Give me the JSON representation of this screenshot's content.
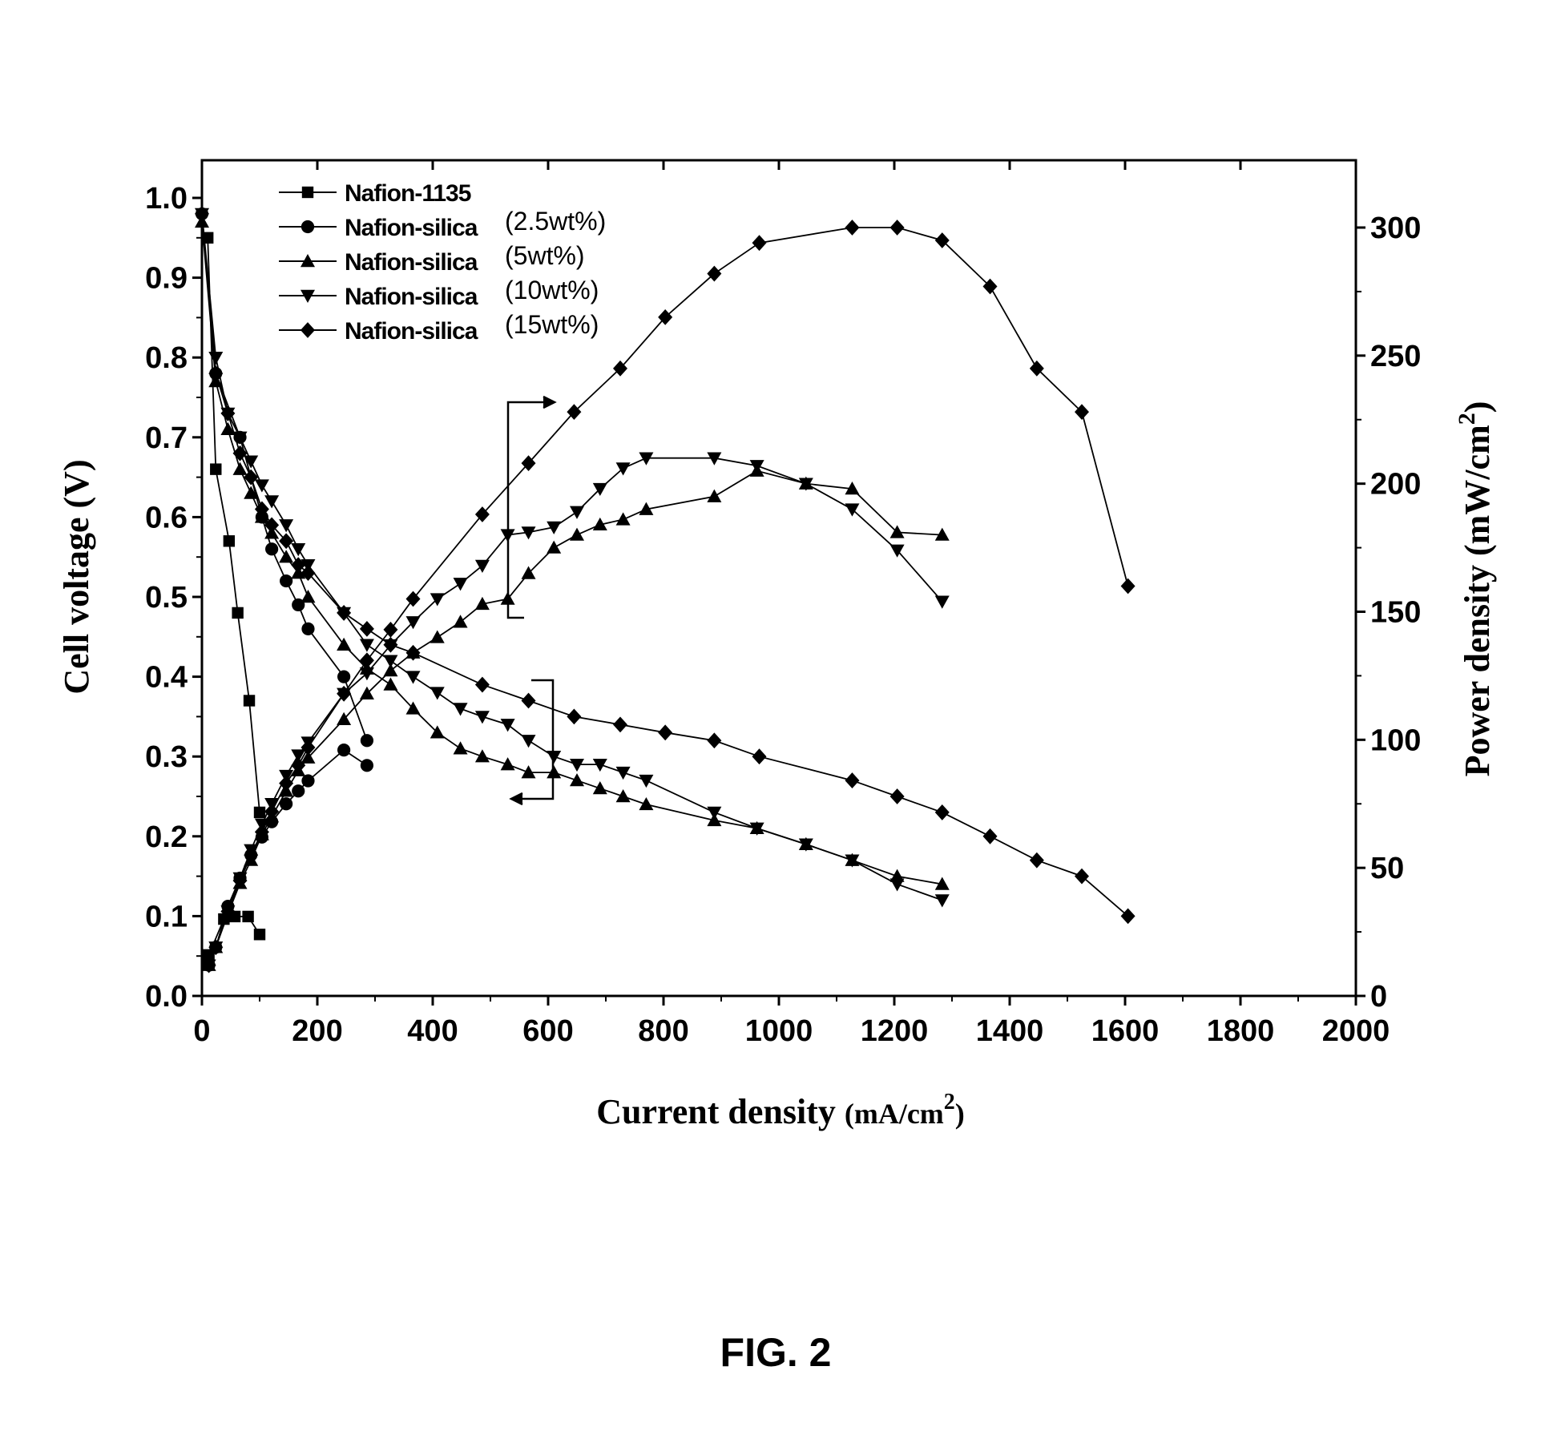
{
  "figure_caption": "FIG. 2",
  "chart_data": {
    "type": "line",
    "xlabel": "Current density (mA/cm2)",
    "xlabel_main": "Current density ",
    "xlabel_unit": "(mA/cm",
    "xlabel_sup": "2",
    "xlabel_close": ")",
    "ylabel": "Cell voltage (V)",
    "y2label": "Power density (mW/cm2)",
    "y2label_main": "Power density (mW/cm",
    "y2label_sup": "2",
    "y2label_close": ")",
    "xlim": [
      0,
      2000
    ],
    "ylim": [
      0,
      1.0
    ],
    "y2lim": [
      0,
      300
    ],
    "xticks": [
      "0",
      "200",
      "400",
      "600",
      "800",
      "1000",
      "1200",
      "1400",
      "1600",
      "1800",
      "2000"
    ],
    "yticks": [
      "0.0",
      "0.1",
      "0.2",
      "0.3",
      "0.4",
      "0.5",
      "0.6",
      "0.7",
      "0.8",
      "0.9",
      "1.0"
    ],
    "y2ticks": [
      "0",
      "50",
      "100",
      "150",
      "200",
      "250",
      "300"
    ],
    "legend_position": "top-left",
    "series": [
      {
        "name": "Nafion-1135",
        "suffix": "",
        "marker": "square",
        "voltage": [
          [
            10,
            0.95
          ],
          [
            24,
            0.66
          ],
          [
            47,
            0.57
          ],
          [
            62,
            0.48
          ],
          [
            82,
            0.37
          ],
          [
            100,
            0.23
          ]
        ],
        "power": [
          [
            12,
            16
          ],
          [
            38,
            30
          ],
          [
            57,
            31
          ],
          [
            80,
            31
          ],
          [
            100,
            24
          ]
        ]
      },
      {
        "name": "Nafion-silica",
        "suffix": "(2.5wt%)",
        "marker": "circle",
        "voltage": [
          [
            0,
            0.98
          ],
          [
            24,
            0.78
          ],
          [
            66,
            0.7
          ],
          [
            104,
            0.6
          ],
          [
            121,
            0.56
          ],
          [
            146,
            0.52
          ],
          [
            167,
            0.49
          ],
          [
            184,
            0.46
          ],
          [
            246,
            0.4
          ],
          [
            286,
            0.32
          ]
        ],
        "power": [
          [
            12,
            12
          ],
          [
            24,
            19
          ],
          [
            45,
            35
          ],
          [
            66,
            46
          ],
          [
            85,
            55
          ],
          [
            104,
            62
          ],
          [
            121,
            68
          ],
          [
            146,
            75
          ],
          [
            167,
            80
          ],
          [
            184,
            84
          ],
          [
            246,
            96
          ],
          [
            286,
            90
          ]
        ]
      },
      {
        "name": "Nafion-silica",
        "suffix": "(5wt%)",
        "marker": "triangle-up",
        "voltage": [
          [
            0,
            0.97
          ],
          [
            24,
            0.77
          ],
          [
            45,
            0.71
          ],
          [
            66,
            0.66
          ],
          [
            85,
            0.63
          ],
          [
            104,
            0.6
          ],
          [
            121,
            0.58
          ],
          [
            146,
            0.55
          ],
          [
            167,
            0.53
          ],
          [
            184,
            0.5
          ],
          [
            246,
            0.44
          ],
          [
            286,
            0.41
          ],
          [
            327,
            0.39
          ],
          [
            366,
            0.36
          ],
          [
            408,
            0.33
          ],
          [
            448,
            0.31
          ],
          [
            486,
            0.3
          ],
          [
            530,
            0.29
          ],
          [
            566,
            0.28
          ],
          [
            610,
            0.28
          ],
          [
            650,
            0.27
          ],
          [
            690,
            0.26
          ],
          [
            730,
            0.25
          ],
          [
            770,
            0.24
          ],
          [
            888,
            0.22
          ],
          [
            962,
            0.21
          ],
          [
            1047,
            0.19
          ],
          [
            1127,
            0.17
          ],
          [
            1205,
            0.15
          ],
          [
            1283,
            0.14
          ]
        ],
        "power": [
          [
            12,
            12
          ],
          [
            24,
            19
          ],
          [
            45,
            32
          ],
          [
            66,
            44
          ],
          [
            85,
            53
          ],
          [
            104,
            63
          ],
          [
            121,
            70
          ],
          [
            146,
            80
          ],
          [
            167,
            88
          ],
          [
            184,
            93
          ],
          [
            246,
            108
          ],
          [
            286,
            118
          ],
          [
            327,
            127
          ],
          [
            366,
            134
          ],
          [
            408,
            140
          ],
          [
            448,
            146
          ],
          [
            486,
            153
          ],
          [
            530,
            155
          ],
          [
            566,
            165
          ],
          [
            610,
            175
          ],
          [
            650,
            180
          ],
          [
            690,
            184
          ],
          [
            730,
            186
          ],
          [
            770,
            190
          ],
          [
            888,
            195
          ],
          [
            962,
            205
          ],
          [
            1047,
            200
          ],
          [
            1127,
            198
          ],
          [
            1205,
            181
          ],
          [
            1283,
            180
          ]
        ]
      },
      {
        "name": "Nafion-silica",
        "suffix": "(10wt%)",
        "marker": "triangle-down",
        "voltage": [
          [
            0,
            0.98
          ],
          [
            24,
            0.8
          ],
          [
            45,
            0.73
          ],
          [
            66,
            0.7
          ],
          [
            85,
            0.67
          ],
          [
            104,
            0.64
          ],
          [
            121,
            0.62
          ],
          [
            146,
            0.59
          ],
          [
            167,
            0.56
          ],
          [
            184,
            0.54
          ],
          [
            246,
            0.48
          ],
          [
            286,
            0.44
          ],
          [
            327,
            0.42
          ],
          [
            366,
            0.4
          ],
          [
            408,
            0.38
          ],
          [
            448,
            0.36
          ],
          [
            486,
            0.35
          ],
          [
            530,
            0.34
          ],
          [
            566,
            0.32
          ],
          [
            610,
            0.3
          ],
          [
            650,
            0.29
          ],
          [
            690,
            0.29
          ],
          [
            730,
            0.28
          ],
          [
            770,
            0.27
          ],
          [
            888,
            0.23
          ],
          [
            962,
            0.21
          ],
          [
            1047,
            0.19
          ],
          [
            1127,
            0.17
          ],
          [
            1205,
            0.14
          ],
          [
            1283,
            0.12
          ]
        ],
        "power": [
          [
            12,
            12
          ],
          [
            24,
            19
          ],
          [
            45,
            33
          ],
          [
            66,
            46
          ],
          [
            85,
            57
          ],
          [
            104,
            67
          ],
          [
            121,
            75
          ],
          [
            146,
            86
          ],
          [
            167,
            94
          ],
          [
            184,
            99
          ],
          [
            246,
            118
          ],
          [
            286,
            126
          ],
          [
            327,
            137
          ],
          [
            366,
            146
          ],
          [
            408,
            155
          ],
          [
            448,
            161
          ],
          [
            486,
            168
          ],
          [
            530,
            180
          ],
          [
            566,
            181
          ],
          [
            610,
            183
          ],
          [
            650,
            189
          ],
          [
            690,
            198
          ],
          [
            730,
            206
          ],
          [
            770,
            210
          ],
          [
            888,
            210
          ],
          [
            962,
            207
          ],
          [
            1047,
            200
          ],
          [
            1127,
            190
          ],
          [
            1205,
            174
          ],
          [
            1283,
            154
          ]
        ]
      },
      {
        "name": "Nafion-silica",
        "suffix": "(15wt%)",
        "marker": "diamond",
        "voltage": [
          [
            0,
            0.98
          ],
          [
            24,
            0.78
          ],
          [
            45,
            0.73
          ],
          [
            66,
            0.68
          ],
          [
            85,
            0.65
          ],
          [
            104,
            0.61
          ],
          [
            121,
            0.59
          ],
          [
            146,
            0.57
          ],
          [
            167,
            0.54
          ],
          [
            184,
            0.53
          ],
          [
            246,
            0.48
          ],
          [
            286,
            0.46
          ],
          [
            327,
            0.44
          ],
          [
            366,
            0.43
          ],
          [
            486,
            0.39
          ],
          [
            566,
            0.37
          ],
          [
            645,
            0.35
          ],
          [
            725,
            0.34
          ],
          [
            803,
            0.33
          ],
          [
            888,
            0.32
          ],
          [
            966,
            0.3
          ],
          [
            1127,
            0.27
          ],
          [
            1205,
            0.25
          ],
          [
            1283,
            0.23
          ],
          [
            1366,
            0.2
          ],
          [
            1447,
            0.17
          ],
          [
            1525,
            0.15
          ],
          [
            1605,
            0.1
          ]
        ],
        "power": [
          [
            12,
            12
          ],
          [
            24,
            19
          ],
          [
            45,
            33
          ],
          [
            66,
            45
          ],
          [
            85,
            55
          ],
          [
            104,
            64
          ],
          [
            121,
            72
          ],
          [
            146,
            83
          ],
          [
            167,
            90
          ],
          [
            184,
            97
          ],
          [
            246,
            118
          ],
          [
            286,
            131
          ],
          [
            327,
            143
          ],
          [
            366,
            155
          ],
          [
            486,
            188
          ],
          [
            566,
            208
          ],
          [
            645,
            228
          ],
          [
            725,
            245
          ],
          [
            803,
            265
          ],
          [
            888,
            282
          ],
          [
            966,
            294
          ],
          [
            1127,
            300
          ],
          [
            1205,
            300
          ],
          [
            1283,
            295
          ],
          [
            1366,
            277
          ],
          [
            1447,
            245
          ],
          [
            1525,
            228
          ],
          [
            1605,
            160
          ]
        ]
      }
    ]
  }
}
